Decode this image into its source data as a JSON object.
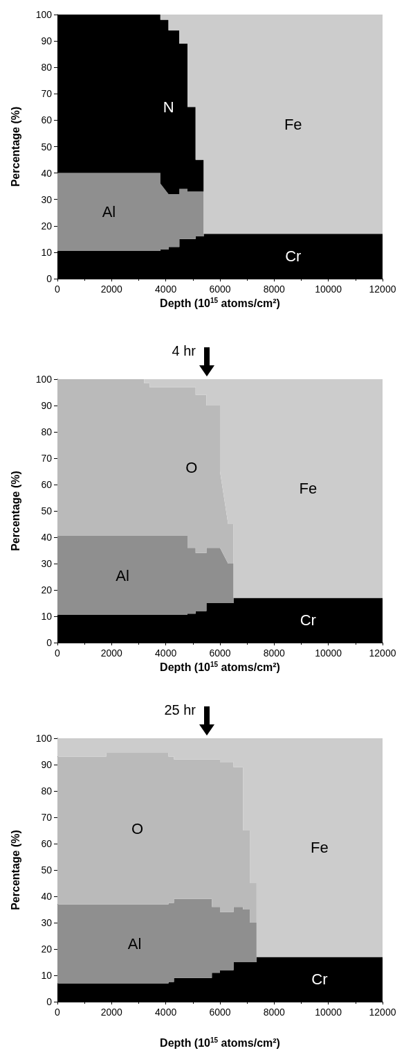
{
  "chart_data": [
    {
      "type": "area",
      "stacked": true,
      "legend": false,
      "grid": false,
      "xlabel": "Depth (10$^{15}$ atoms/cm²)",
      "ylabel": "Percentage (%)",
      "xlim": [
        0,
        12000
      ],
      "xticks": [
        0,
        2000,
        4000,
        6000,
        8000,
        10000,
        12000
      ],
      "ylim": [
        0,
        100
      ],
      "yticks": [
        0,
        10,
        20,
        30,
        40,
        50,
        60,
        70,
        80,
        90,
        100
      ],
      "x": [
        0,
        3800,
        3800,
        4100,
        4100,
        4500,
        4500,
        4800,
        4800,
        5100,
        5100,
        5400,
        5400,
        12000
      ],
      "series": [
        {
          "name": "Cr",
          "color": "#000000",
          "values": [
            10.5,
            10.5,
            11,
            11,
            12,
            12,
            15,
            15,
            15,
            15,
            16,
            16,
            17,
            17
          ]
        },
        {
          "name": "Al",
          "color": "#8f8f8f",
          "values": [
            29.5,
            29.5,
            25,
            21,
            20,
            20,
            19,
            19,
            18,
            18,
            17,
            17,
            0,
            0
          ]
        },
        {
          "name": "N",
          "color": "#000000",
          "values": [
            60,
            60,
            62,
            66,
            62,
            62,
            55,
            55,
            32,
            32,
            12,
            12,
            0,
            0
          ]
        },
        {
          "name": "Fe",
          "color": "#cccccc",
          "values": [
            null,
            null,
            2,
            2,
            6,
            6,
            11,
            11,
            35,
            35,
            55,
            55,
            83,
            83
          ]
        }
      ]
    },
    {
      "type": "area",
      "stacked": true,
      "legend": false,
      "grid": false,
      "annotations": [
        "4 hr"
      ],
      "xlabel": "Depth (10$^{15}$ atoms/cm²)",
      "ylabel": "Percentage (%)",
      "xlim": [
        0,
        12000
      ],
      "xticks": [
        0,
        2000,
        4000,
        6000,
        8000,
        10000,
        12000
      ],
      "ylim": [
        0,
        100
      ],
      "yticks": [
        0,
        10,
        20,
        30,
        40,
        50,
        60,
        70,
        80,
        90,
        100
      ],
      "x": [
        0,
        3200,
        3200,
        3400,
        3400,
        4800,
        4800,
        5100,
        5100,
        5500,
        5500,
        6000,
        6000,
        6300,
        6500,
        6500,
        12000
      ],
      "series": [
        {
          "name": "Cr",
          "color": "#000000",
          "values": [
            10.5,
            10.5,
            10.5,
            10.5,
            10.5,
            10.5,
            11,
            11,
            12,
            12,
            15,
            15,
            15,
            15,
            15,
            17,
            17
          ]
        },
        {
          "name": "Al",
          "color": "#8f8f8f",
          "values": [
            30,
            30,
            30,
            30,
            30,
            30,
            25,
            25,
            22,
            22,
            21,
            21,
            21,
            15,
            15,
            0,
            0
          ]
        },
        {
          "name": "O",
          "color": "#bababa",
          "values": [
            59.5,
            59.5,
            58,
            58,
            56.5,
            56.5,
            61,
            61,
            60,
            60,
            54,
            54,
            29,
            15,
            15,
            0,
            0
          ]
        },
        {
          "name": "Fe",
          "color": "#cccccc",
          "values": [
            null,
            null,
            1.5,
            1.5,
            3,
            3,
            3,
            3,
            6,
            6,
            10,
            10,
            35,
            55,
            55,
            83,
            83
          ]
        }
      ]
    },
    {
      "type": "area",
      "stacked": true,
      "legend": false,
      "grid": false,
      "annotations": [
        "25 hr"
      ],
      "xlabel": "Depth (10$^{15}$ atoms/cm²)",
      "ylabel": "Percentage (%)",
      "xlim": [
        0,
        12000
      ],
      "xticks": [
        0,
        2000,
        4000,
        6000,
        8000,
        10000,
        12000
      ],
      "ylim": [
        0,
        100
      ],
      "yticks": [
        0,
        10,
        20,
        30,
        40,
        50,
        60,
        70,
        80,
        90,
        100
      ],
      "x": [
        0,
        1800,
        1800,
        4100,
        4100,
        4300,
        4300,
        5700,
        5700,
        6000,
        6000,
        6500,
        6500,
        6850,
        6850,
        7100,
        7100,
        7350,
        7350,
        12000
      ],
      "series": [
        {
          "name": "Cr",
          "color": "#000000",
          "values": [
            7,
            7,
            7,
            7,
            7.5,
            7.5,
            9,
            9,
            11,
            11,
            12,
            12,
            15,
            15,
            15,
            15,
            15,
            15,
            17,
            17
          ]
        },
        {
          "name": "Al",
          "color": "#8f8f8f",
          "values": [
            30,
            30,
            30,
            30,
            30,
            30,
            30,
            30,
            25,
            25,
            22,
            22,
            21,
            21,
            20,
            20,
            15,
            15,
            0,
            0
          ]
        },
        {
          "name": "O",
          "color": "#bababa",
          "values": [
            56,
            56,
            57.5,
            57.5,
            55.5,
            55.5,
            53,
            53,
            56,
            56,
            57,
            57,
            53,
            53,
            30,
            30,
            15,
            15,
            0,
            0
          ]
        },
        {
          "name": "Fe",
          "color": "#cccccc",
          "values": [
            7,
            7,
            5.5,
            5.5,
            7,
            7,
            8,
            8,
            8,
            8,
            9,
            9,
            11,
            11,
            35,
            35,
            55,
            55,
            83,
            83
          ]
        }
      ]
    }
  ]
}
